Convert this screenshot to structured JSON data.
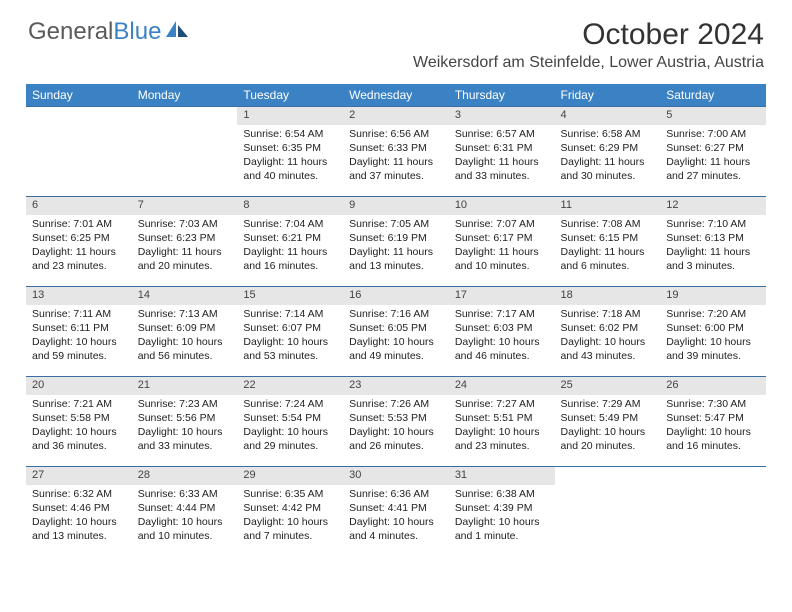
{
  "logo": {
    "part1": "General",
    "part2": "Blue"
  },
  "title": "October 2024",
  "location": "Weikersdorf am Steinfelde, Lower Austria, Austria",
  "colors": {
    "header_bg": "#3b82c4",
    "daynum_bg": "#e6e6e6",
    "border": "#3b6ea0",
    "text": "#222222",
    "title_text": "#333333"
  },
  "weekday_labels": [
    "Sunday",
    "Monday",
    "Tuesday",
    "Wednesday",
    "Thursday",
    "Friday",
    "Saturday"
  ],
  "weeks": [
    {
      "nums": [
        "",
        "",
        "1",
        "2",
        "3",
        "4",
        "5"
      ],
      "cells": [
        {
          "empty": true
        },
        {
          "empty": true
        },
        {
          "sunrise": "Sunrise: 6:54 AM",
          "sunset": "Sunset: 6:35 PM",
          "day1": "Daylight: 11 hours",
          "day2": "and 40 minutes."
        },
        {
          "sunrise": "Sunrise: 6:56 AM",
          "sunset": "Sunset: 6:33 PM",
          "day1": "Daylight: 11 hours",
          "day2": "and 37 minutes."
        },
        {
          "sunrise": "Sunrise: 6:57 AM",
          "sunset": "Sunset: 6:31 PM",
          "day1": "Daylight: 11 hours",
          "day2": "and 33 minutes."
        },
        {
          "sunrise": "Sunrise: 6:58 AM",
          "sunset": "Sunset: 6:29 PM",
          "day1": "Daylight: 11 hours",
          "day2": "and 30 minutes."
        },
        {
          "sunrise": "Sunrise: 7:00 AM",
          "sunset": "Sunset: 6:27 PM",
          "day1": "Daylight: 11 hours",
          "day2": "and 27 minutes."
        }
      ]
    },
    {
      "nums": [
        "6",
        "7",
        "8",
        "9",
        "10",
        "11",
        "12"
      ],
      "cells": [
        {
          "sunrise": "Sunrise: 7:01 AM",
          "sunset": "Sunset: 6:25 PM",
          "day1": "Daylight: 11 hours",
          "day2": "and 23 minutes."
        },
        {
          "sunrise": "Sunrise: 7:03 AM",
          "sunset": "Sunset: 6:23 PM",
          "day1": "Daylight: 11 hours",
          "day2": "and 20 minutes."
        },
        {
          "sunrise": "Sunrise: 7:04 AM",
          "sunset": "Sunset: 6:21 PM",
          "day1": "Daylight: 11 hours",
          "day2": "and 16 minutes."
        },
        {
          "sunrise": "Sunrise: 7:05 AM",
          "sunset": "Sunset: 6:19 PM",
          "day1": "Daylight: 11 hours",
          "day2": "and 13 minutes."
        },
        {
          "sunrise": "Sunrise: 7:07 AM",
          "sunset": "Sunset: 6:17 PM",
          "day1": "Daylight: 11 hours",
          "day2": "and 10 minutes."
        },
        {
          "sunrise": "Sunrise: 7:08 AM",
          "sunset": "Sunset: 6:15 PM",
          "day1": "Daylight: 11 hours",
          "day2": "and 6 minutes."
        },
        {
          "sunrise": "Sunrise: 7:10 AM",
          "sunset": "Sunset: 6:13 PM",
          "day1": "Daylight: 11 hours",
          "day2": "and 3 minutes."
        }
      ]
    },
    {
      "nums": [
        "13",
        "14",
        "15",
        "16",
        "17",
        "18",
        "19"
      ],
      "cells": [
        {
          "sunrise": "Sunrise: 7:11 AM",
          "sunset": "Sunset: 6:11 PM",
          "day1": "Daylight: 10 hours",
          "day2": "and 59 minutes."
        },
        {
          "sunrise": "Sunrise: 7:13 AM",
          "sunset": "Sunset: 6:09 PM",
          "day1": "Daylight: 10 hours",
          "day2": "and 56 minutes."
        },
        {
          "sunrise": "Sunrise: 7:14 AM",
          "sunset": "Sunset: 6:07 PM",
          "day1": "Daylight: 10 hours",
          "day2": "and 53 minutes."
        },
        {
          "sunrise": "Sunrise: 7:16 AM",
          "sunset": "Sunset: 6:05 PM",
          "day1": "Daylight: 10 hours",
          "day2": "and 49 minutes."
        },
        {
          "sunrise": "Sunrise: 7:17 AM",
          "sunset": "Sunset: 6:03 PM",
          "day1": "Daylight: 10 hours",
          "day2": "and 46 minutes."
        },
        {
          "sunrise": "Sunrise: 7:18 AM",
          "sunset": "Sunset: 6:02 PM",
          "day1": "Daylight: 10 hours",
          "day2": "and 43 minutes."
        },
        {
          "sunrise": "Sunrise: 7:20 AM",
          "sunset": "Sunset: 6:00 PM",
          "day1": "Daylight: 10 hours",
          "day2": "and 39 minutes."
        }
      ]
    },
    {
      "nums": [
        "20",
        "21",
        "22",
        "23",
        "24",
        "25",
        "26"
      ],
      "cells": [
        {
          "sunrise": "Sunrise: 7:21 AM",
          "sunset": "Sunset: 5:58 PM",
          "day1": "Daylight: 10 hours",
          "day2": "and 36 minutes."
        },
        {
          "sunrise": "Sunrise: 7:23 AM",
          "sunset": "Sunset: 5:56 PM",
          "day1": "Daylight: 10 hours",
          "day2": "and 33 minutes."
        },
        {
          "sunrise": "Sunrise: 7:24 AM",
          "sunset": "Sunset: 5:54 PM",
          "day1": "Daylight: 10 hours",
          "day2": "and 29 minutes."
        },
        {
          "sunrise": "Sunrise: 7:26 AM",
          "sunset": "Sunset: 5:53 PM",
          "day1": "Daylight: 10 hours",
          "day2": "and 26 minutes."
        },
        {
          "sunrise": "Sunrise: 7:27 AM",
          "sunset": "Sunset: 5:51 PM",
          "day1": "Daylight: 10 hours",
          "day2": "and 23 minutes."
        },
        {
          "sunrise": "Sunrise: 7:29 AM",
          "sunset": "Sunset: 5:49 PM",
          "day1": "Daylight: 10 hours",
          "day2": "and 20 minutes."
        },
        {
          "sunrise": "Sunrise: 7:30 AM",
          "sunset": "Sunset: 5:47 PM",
          "day1": "Daylight: 10 hours",
          "day2": "and 16 minutes."
        }
      ]
    },
    {
      "nums": [
        "27",
        "28",
        "29",
        "30",
        "31",
        "",
        ""
      ],
      "cells": [
        {
          "sunrise": "Sunrise: 6:32 AM",
          "sunset": "Sunset: 4:46 PM",
          "day1": "Daylight: 10 hours",
          "day2": "and 13 minutes."
        },
        {
          "sunrise": "Sunrise: 6:33 AM",
          "sunset": "Sunset: 4:44 PM",
          "day1": "Daylight: 10 hours",
          "day2": "and 10 minutes."
        },
        {
          "sunrise": "Sunrise: 6:35 AM",
          "sunset": "Sunset: 4:42 PM",
          "day1": "Daylight: 10 hours",
          "day2": "and 7 minutes."
        },
        {
          "sunrise": "Sunrise: 6:36 AM",
          "sunset": "Sunset: 4:41 PM",
          "day1": "Daylight: 10 hours",
          "day2": "and 4 minutes."
        },
        {
          "sunrise": "Sunrise: 6:38 AM",
          "sunset": "Sunset: 4:39 PM",
          "day1": "Daylight: 10 hours",
          "day2": "and 1 minute."
        },
        {
          "empty": true
        },
        {
          "empty": true
        }
      ]
    }
  ]
}
